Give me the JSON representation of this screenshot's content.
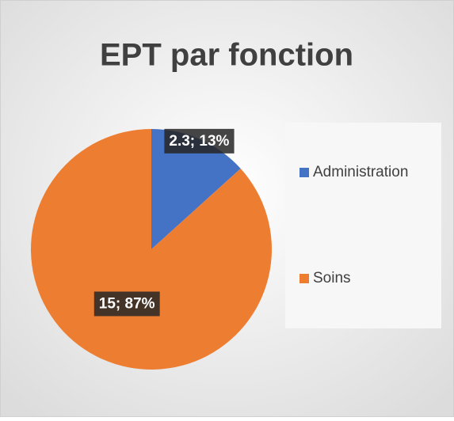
{
  "chart_data": {
    "type": "pie",
    "title": "EPT par fonction",
    "categories": [
      "Administration",
      "Soins"
    ],
    "values": [
      2.3,
      15
    ],
    "value_labels": [
      "2.3; 13%",
      "15; 87%"
    ],
    "colors": [
      "#4472c4",
      "#ed7d31"
    ],
    "legend": "right"
  }
}
